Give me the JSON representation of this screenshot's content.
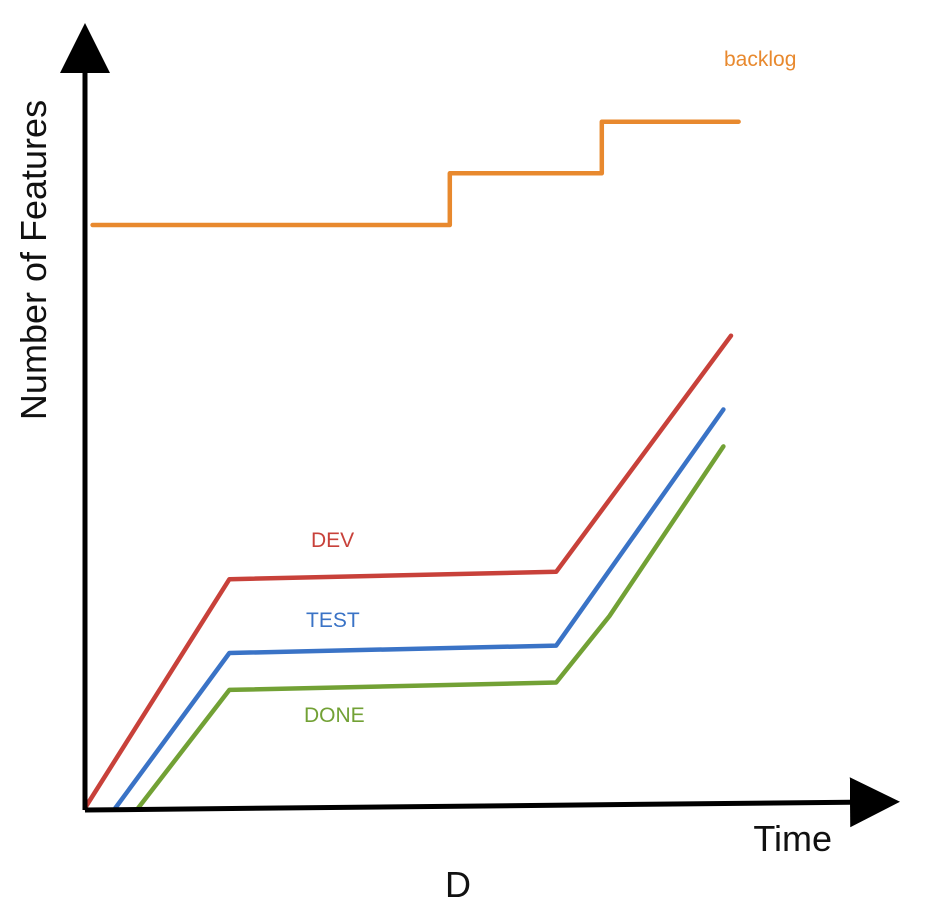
{
  "chart_data": {
    "type": "line",
    "xlabel": "Time",
    "ylabel": "Number of Features",
    "caption": "D",
    "xlim": [
      0,
      100
    ],
    "ylim": [
      0,
      100
    ],
    "axis_ticks": false,
    "grid": false,
    "series": [
      {
        "key": "backlog",
        "name": "backlog",
        "color": "#E8892E",
        "x": [
          1,
          48,
          48,
          68,
          68,
          86
        ],
        "y": [
          79,
          79,
          86,
          86,
          93,
          93
        ]
      },
      {
        "key": "dev",
        "name": "DEV",
        "color": "#C8413A",
        "x": [
          0,
          19,
          62,
          85
        ],
        "y": [
          0,
          31,
          32,
          64
        ]
      },
      {
        "key": "test",
        "name": "TEST",
        "color": "#3A73C6",
        "x": [
          4,
          19,
          62,
          84
        ],
        "y": [
          0,
          21,
          22,
          54
        ]
      },
      {
        "key": "done",
        "name": "DONE",
        "color": "#72A135",
        "x": [
          7,
          19,
          62,
          69,
          84
        ],
        "y": [
          0,
          16,
          17,
          26,
          49
        ]
      }
    ]
  }
}
